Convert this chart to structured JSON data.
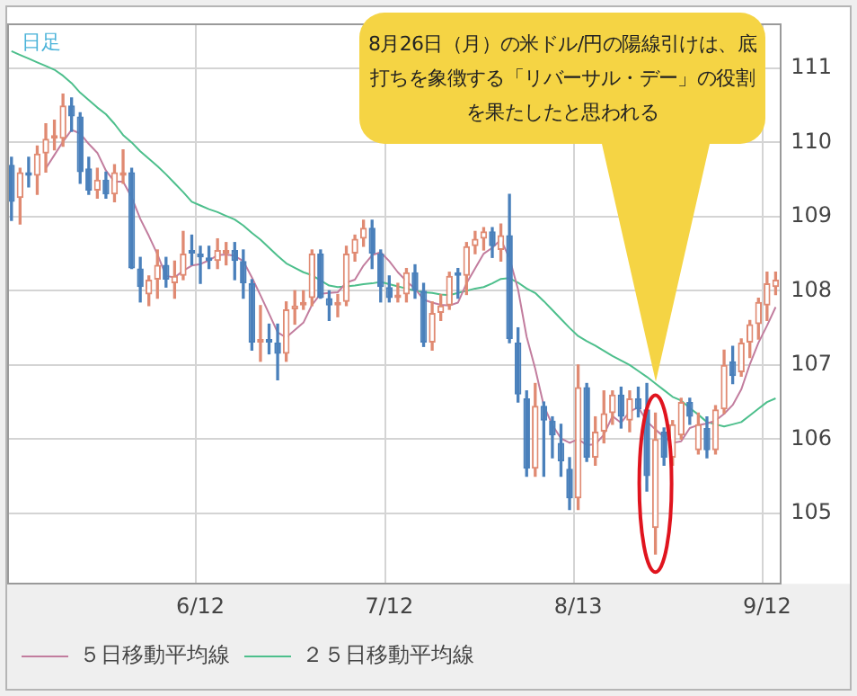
{
  "chart_data": {
    "type": "candlestick",
    "categories": [
      null,
      null,
      null,
      null,
      null,
      null,
      null,
      null,
      null,
      null,
      null,
      null,
      null,
      null,
      null,
      null,
      null,
      null,
      null,
      null,
      null,
      null,
      "6/12",
      null,
      null,
      null,
      null,
      null,
      null,
      null,
      null,
      null,
      null,
      null,
      null,
      null,
      null,
      null,
      null,
      null,
      null,
      null,
      null,
      null,
      "7/12",
      null,
      null,
      null,
      null,
      null,
      null,
      null,
      null,
      null,
      null,
      null,
      null,
      null,
      null,
      null,
      null,
      null,
      null,
      null,
      null,
      null,
      "8/13",
      null,
      null,
      null,
      null,
      null,
      null,
      null,
      null,
      null,
      null,
      null,
      null,
      null,
      null,
      null,
      null,
      null,
      null,
      null,
      null,
      null,
      "9/12",
      null
    ],
    "ohlc": [
      [
        109.7,
        109.8,
        108.95,
        109.2
      ],
      [
        109.25,
        109.65,
        108.9,
        109.6
      ],
      [
        109.6,
        109.8,
        109.4,
        109.55
      ],
      [
        109.55,
        109.95,
        109.3,
        109.85
      ],
      [
        109.85,
        110.25,
        109.6,
        110.05
      ],
      [
        110.05,
        110.3,
        109.9,
        110.1
      ],
      [
        110.05,
        110.65,
        109.95,
        110.5
      ],
      [
        110.5,
        110.6,
        110.15,
        110.35
      ],
      [
        110.35,
        110.4,
        109.45,
        109.6
      ],
      [
        109.65,
        109.8,
        109.3,
        109.35
      ],
      [
        109.35,
        109.65,
        109.25,
        109.5
      ],
      [
        109.5,
        109.6,
        109.25,
        109.3
      ],
      [
        109.3,
        109.7,
        109.2,
        109.6
      ],
      [
        109.55,
        109.9,
        109.45,
        109.6
      ],
      [
        109.6,
        109.65,
        108.3,
        108.3
      ],
      [
        108.3,
        108.45,
        107.85,
        108.05
      ],
      [
        107.95,
        108.2,
        107.8,
        108.15
      ],
      [
        108.15,
        108.55,
        107.9,
        108.35
      ],
      [
        108.35,
        108.45,
        108.05,
        108.15
      ],
      [
        108.1,
        108.4,
        107.9,
        108.2
      ],
      [
        108.2,
        108.8,
        108.15,
        108.5
      ],
      [
        108.55,
        108.75,
        108.35,
        108.5
      ],
      [
        108.5,
        108.6,
        108.1,
        108.45
      ],
      [
        108.45,
        108.6,
        108.3,
        108.4
      ],
      [
        108.4,
        108.7,
        108.3,
        108.55
      ],
      [
        108.5,
        108.65,
        108.35,
        108.55
      ],
      [
        108.55,
        108.65,
        108.15,
        108.4
      ],
      [
        108.4,
        108.55,
        107.9,
        108.1
      ],
      [
        108.1,
        108.15,
        107.2,
        107.3
      ],
      [
        107.3,
        107.8,
        107.05,
        107.35
      ],
      [
        107.35,
        107.55,
        107.15,
        107.3
      ],
      [
        107.3,
        107.55,
        106.8,
        107.15
      ],
      [
        107.15,
        107.85,
        107.05,
        107.75
      ],
      [
        107.75,
        108.0,
        107.55,
        107.8
      ],
      [
        107.8,
        108.0,
        107.75,
        107.85
      ],
      [
        107.9,
        108.55,
        107.8,
        108.5
      ],
      [
        108.5,
        108.55,
        107.9,
        107.9
      ],
      [
        107.9,
        108.0,
        107.6,
        107.8
      ],
      [
        107.8,
        107.95,
        107.65,
        107.85
      ],
      [
        107.85,
        108.6,
        107.8,
        108.5
      ],
      [
        108.5,
        108.75,
        108.4,
        108.7
      ],
      [
        108.7,
        108.95,
        108.6,
        108.85
      ],
      [
        108.85,
        108.95,
        108.3,
        108.5
      ],
      [
        108.5,
        108.55,
        107.85,
        108.05
      ],
      [
        108.05,
        108.2,
        107.85,
        107.9
      ],
      [
        107.9,
        108.1,
        107.85,
        107.95
      ],
      [
        107.95,
        108.3,
        107.85,
        108.25
      ],
      [
        108.25,
        108.35,
        107.9,
        108.0
      ],
      [
        108.0,
        108.1,
        107.25,
        107.3
      ],
      [
        107.3,
        107.85,
        107.2,
        107.7
      ],
      [
        107.7,
        107.95,
        107.6,
        107.8
      ],
      [
        107.8,
        108.25,
        107.75,
        108.2
      ],
      [
        108.25,
        108.3,
        107.9,
        108.2
      ],
      [
        108.2,
        108.65,
        107.95,
        108.6
      ],
      [
        108.6,
        108.8,
        108.5,
        108.7
      ],
      [
        108.7,
        108.85,
        108.55,
        108.8
      ],
      [
        108.8,
        108.85,
        108.45,
        108.6
      ],
      [
        108.55,
        108.9,
        108.4,
        108.75
      ],
      [
        108.75,
        109.3,
        107.3,
        107.35
      ],
      [
        107.3,
        107.5,
        106.5,
        106.6
      ],
      [
        106.55,
        106.65,
        105.5,
        105.6
      ],
      [
        105.6,
        106.75,
        105.5,
        106.45
      ],
      [
        106.45,
        106.5,
        105.5,
        106.25
      ],
      [
        106.25,
        106.3,
        105.75,
        106.05
      ],
      [
        105.95,
        106.2,
        105.5,
        105.7
      ],
      [
        105.6,
        105.75,
        105.05,
        105.2
      ],
      [
        105.2,
        107.0,
        105.05,
        106.7
      ],
      [
        106.7,
        106.75,
        105.7,
        105.75
      ],
      [
        105.75,
        106.3,
        105.65,
        106.1
      ],
      [
        106.1,
        106.65,
        105.95,
        106.35
      ],
      [
        106.35,
        106.65,
        106.2,
        106.6
      ],
      [
        106.6,
        106.7,
        106.15,
        106.3
      ],
      [
        106.25,
        106.65,
        106.1,
        106.55
      ],
      [
        106.55,
        106.7,
        106.3,
        106.4
      ],
      [
        106.4,
        106.75,
        105.3,
        105.5
      ],
      [
        104.8,
        106.35,
        104.45,
        106.0
      ],
      [
        106.1,
        106.15,
        105.65,
        105.75
      ],
      [
        105.75,
        106.25,
        105.65,
        106.2
      ],
      [
        106.05,
        106.55,
        106.0,
        106.5
      ],
      [
        106.5,
        106.55,
        106.2,
        106.3
      ],
      [
        105.85,
        106.35,
        105.8,
        106.2
      ],
      [
        106.15,
        106.3,
        105.75,
        105.85
      ],
      [
        105.85,
        106.45,
        105.8,
        106.4
      ],
      [
        106.4,
        107.2,
        106.35,
        107.0
      ],
      [
        107.05,
        107.25,
        106.75,
        106.85
      ],
      [
        106.9,
        107.35,
        106.85,
        107.3
      ],
      [
        107.3,
        107.6,
        107.1,
        107.55
      ],
      [
        107.55,
        107.9,
        107.35,
        107.85
      ],
      [
        107.8,
        108.25,
        107.6,
        108.1
      ],
      [
        108.05,
        108.25,
        107.95,
        108.15
      ]
    ],
    "colors": [
      "#4a80bb",
      "#e08a72",
      "#4a80bb",
      "#e08a72",
      "#e08a72",
      "#e08a72",
      "#e08a72",
      "#4a80bb",
      "#4a80bb",
      "#4a80bb",
      "#e08a72",
      "#4a80bb",
      "#e08a72",
      "#e08a72",
      "#4a80bb",
      "#4a80bb",
      "#e08a72",
      "#e08a72",
      "#4a80bb",
      "#e08a72",
      "#e08a72",
      "#4a80bb",
      "#4a80bb",
      "#4a80bb",
      "#e08a72",
      "#e08a72",
      "#4a80bb",
      "#4a80bb",
      "#4a80bb",
      "#e08a72",
      "#4a80bb",
      "#4a80bb",
      "#e08a72",
      "#e08a72",
      "#e08a72",
      "#e08a72",
      "#4a80bb",
      "#4a80bb",
      "#e08a72",
      "#e08a72",
      "#e08a72",
      "#e08a72",
      "#4a80bb",
      "#4a80bb",
      "#4a80bb",
      "#e08a72",
      "#e08a72",
      "#4a80bb",
      "#4a80bb",
      "#e08a72",
      "#e08a72",
      "#e08a72",
      "#4a80bb",
      "#e08a72",
      "#e08a72",
      "#e08a72",
      "#4a80bb",
      "#e08a72",
      "#4a80bb",
      "#4a80bb",
      "#4a80bb",
      "#e08a72",
      "#4a80bb",
      "#4a80bb",
      "#4a80bb",
      "#4a80bb",
      "#e08a72",
      "#4a80bb",
      "#e08a72",
      "#e08a72",
      "#e08a72",
      "#4a80bb",
      "#e08a72",
      "#4a80bb",
      "#4a80bb",
      "#e08a72",
      "#4a80bb",
      "#e08a72",
      "#e08a72",
      "#4a80bb",
      "#e08a72",
      "#4a80bb",
      "#e08a72",
      "#e08a72",
      "#4a80bb",
      "#e08a72",
      "#e08a72",
      "#e08a72",
      "#e08a72",
      "#e08a72"
    ],
    "series": [
      {
        "name": "５日移動平均線",
        "type": "line",
        "color": "#c27d9e",
        "values": [
          null,
          null,
          null,
          null,
          109.65,
          109.83,
          110.01,
          110.17,
          110.12,
          109.98,
          109.86,
          109.62,
          109.47,
          109.47,
          109.26,
          108.97,
          108.74,
          108.49,
          108.2,
          108.18,
          108.27,
          108.34,
          108.36,
          108.41,
          108.48,
          108.49,
          108.47,
          108.4,
          108.18,
          107.94,
          107.69,
          107.44,
          107.37,
          107.47,
          107.57,
          107.81,
          107.96,
          107.97,
          107.98,
          108.11,
          108.15,
          108.34,
          108.48,
          108.52,
          108.4,
          108.25,
          108.13,
          108.03,
          107.88,
          107.84,
          107.81,
          107.8,
          107.84,
          108.1,
          108.3,
          108.5,
          108.58,
          108.69,
          108.44,
          108.02,
          107.38,
          106.95,
          106.45,
          106.19,
          106.01,
          105.95,
          106.0,
          105.92,
          105.93,
          106.06,
          106.31,
          106.22,
          106.37,
          106.43,
          106.24,
          106.13,
          106.03,
          105.95,
          105.97,
          106.15,
          106.19,
          106.21,
          106.25,
          106.34,
          106.46,
          106.67,
          107.01,
          107.3,
          107.53,
          107.78
        ]
      },
      {
        "name": "２５日移動平均線",
        "type": "line",
        "color": "#4dbf8c",
        "values": [
          111.23,
          111.18,
          111.13,
          111.08,
          111.03,
          110.98,
          110.9,
          110.8,
          110.67,
          110.57,
          110.47,
          110.38,
          110.25,
          110.1,
          110.0,
          109.88,
          109.78,
          109.68,
          109.57,
          109.45,
          109.33,
          109.2,
          109.15,
          109.1,
          109.06,
          109.01,
          108.96,
          108.88,
          108.78,
          108.69,
          108.58,
          108.47,
          108.37,
          108.31,
          108.25,
          108.21,
          108.14,
          108.07,
          108.05,
          108.06,
          108.07,
          108.09,
          108.1,
          108.12,
          108.09,
          108.06,
          108.03,
          108.0,
          107.98,
          107.97,
          107.95,
          107.94,
          107.97,
          108.0,
          108.03,
          108.05,
          108.1,
          108.16,
          108.17,
          108.11,
          108.03,
          107.97,
          107.86,
          107.74,
          107.62,
          107.5,
          107.39,
          107.32,
          107.26,
          107.19,
          107.12,
          107.06,
          107.0,
          106.92,
          106.84,
          106.75,
          106.66,
          106.57,
          106.52,
          106.42,
          106.33,
          106.23,
          106.2,
          106.17,
          106.2,
          106.23,
          106.32,
          106.41,
          106.5,
          106.55
        ]
      }
    ],
    "ylim": [
      104.05,
      111.6
    ],
    "yticks": [
      105,
      106,
      107,
      108,
      109,
      110,
      111
    ],
    "grid": true,
    "legend": "bottom left",
    "marker": "none",
    "annotations": [
      "日足",
      "8月26日（月）の米ドル/円の陽線引けは、底打ちを象徴する「リバーサル・デー」の役割を果たしたと思われる"
    ]
  }
}
